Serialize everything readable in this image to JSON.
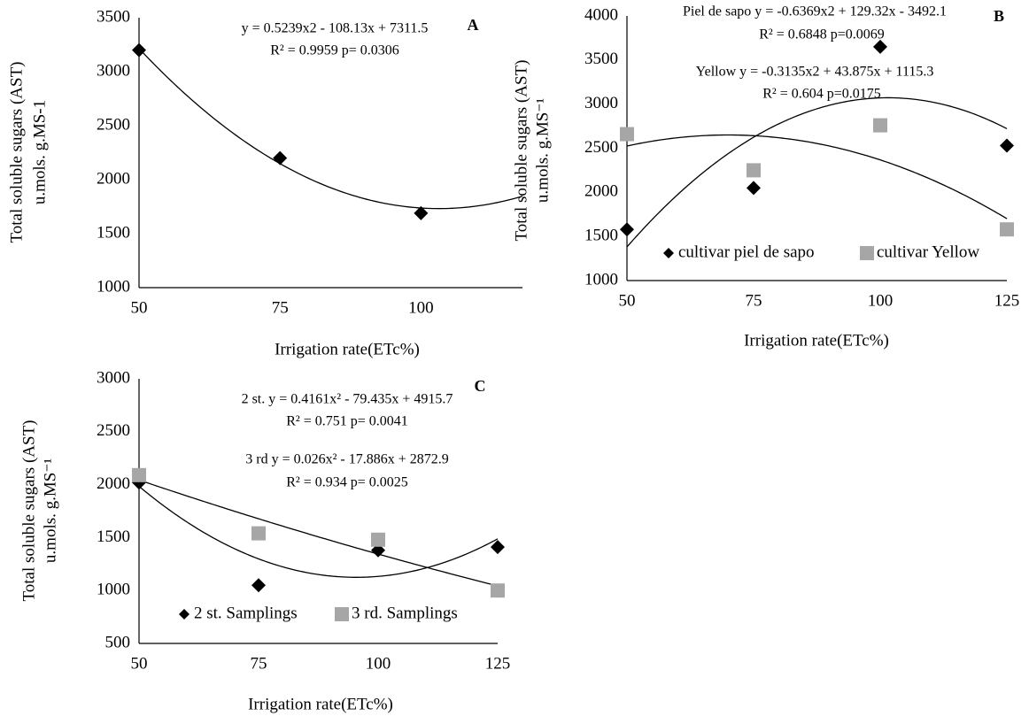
{
  "chart_data": [
    {
      "type": "scatter",
      "panel": "A",
      "ylabel": [
        "Total soluble sugars (AST)",
        "u.mols. g.MS-1"
      ],
      "xlabel": "Irrigation rate(ETc%)",
      "xlim": [
        50,
        118
      ],
      "xticks": [
        50,
        75,
        100
      ],
      "ylim": [
        1000,
        3500
      ],
      "yticks": [
        1000,
        1500,
        2000,
        2500,
        3000,
        3500
      ],
      "x": [
        50,
        75,
        100
      ],
      "series": [
        {
          "color": "#000000",
          "marker": "diamond",
          "values": [
            3200,
            2200,
            1690
          ]
        }
      ],
      "trendlines": [
        {
          "color": "#000000",
          "coefficients": [
            0.5239,
            -108.13,
            7311.5
          ]
        }
      ],
      "annotations": [
        "y = 0.5239x2 - 108.13x + 7311.5",
        "R² = 0.9959  p= 0.0306"
      ]
    },
    {
      "type": "scatter",
      "panel": "B",
      "ylabel": [
        "Total soluble sugars (AST)",
        "u.mols. g.MS⁻¹"
      ],
      "xlabel": "Irrigation rate(ETc%)",
      "xlim": [
        50,
        125
      ],
      "xticks": [
        50,
        75,
        100,
        125
      ],
      "ylim": [
        1000,
        4000
      ],
      "yticks": [
        1000,
        1500,
        2000,
        2500,
        3000,
        3500,
        4000
      ],
      "x": [
        50,
        75,
        100,
        125
      ],
      "series": [
        {
          "name": "cultivar piel de sapo",
          "color": "#000000",
          "marker": "diamond",
          "values": [
            1580,
            2050,
            3650,
            2530
          ]
        },
        {
          "name": "cultivar Yellow",
          "color": "#a6a6a6",
          "marker": "square",
          "values": [
            2660,
            2250,
            2760,
            1580
          ]
        }
      ],
      "legend": "bottom",
      "trendlines": [
        {
          "color": "#000000",
          "coefficients": [
            -0.6369,
            129.32,
            -3492.1
          ]
        },
        {
          "color": "#000000",
          "coefficients": [
            -0.3135,
            43.875,
            1115.3
          ]
        }
      ],
      "annotations": [
        "Piel de sapo y = -0.6369x2 + 129.32x - 3492.1",
        "R² = 0.6848 p=0.0069",
        "Yellow y = -0.3135x2 + 43.875x + 1115.3",
        "R² = 0.604 p=0.0175"
      ]
    },
    {
      "type": "scatter",
      "panel": "C",
      "ylabel": [
        "Total soluble sugars (AST)",
        "u.mols. g.MS⁻¹"
      ],
      "xlabel": "Irrigation rate(ETc%)",
      "xlim": [
        50,
        125
      ],
      "xticks": [
        50,
        75,
        100,
        125
      ],
      "ylim": [
        500,
        3000
      ],
      "yticks": [
        500,
        1000,
        1500,
        2000,
        2500,
        3000
      ],
      "x": [
        50,
        75,
        100,
        125
      ],
      "series": [
        {
          "name": "2 st. Samplings",
          "color": "#000000",
          "marker": "diamond",
          "values": [
            2020,
            1050,
            1380,
            1410
          ]
        },
        {
          "name": "3 rd. Samplings",
          "color": "#a6a6a6",
          "marker": "square",
          "values": [
            2090,
            1540,
            1480,
            1000
          ]
        }
      ],
      "legend": "bottom",
      "trendlines": [
        {
          "color": "#000000",
          "coefficients": [
            0.4161,
            -79.435,
            4915.7
          ]
        },
        {
          "color": "#000000",
          "coefficients": [
            0.026,
            -17.886,
            2872.9
          ]
        }
      ],
      "annotations": [
        "2 st. y = 0.4161x² - 79.435x + 4915.7",
        "R² = 0.751  p= 0.0041",
        "3 rd  y = 0.026x² - 17.886x + 2872.9",
        "R² = 0.934 p= 0.0025"
      ]
    }
  ]
}
